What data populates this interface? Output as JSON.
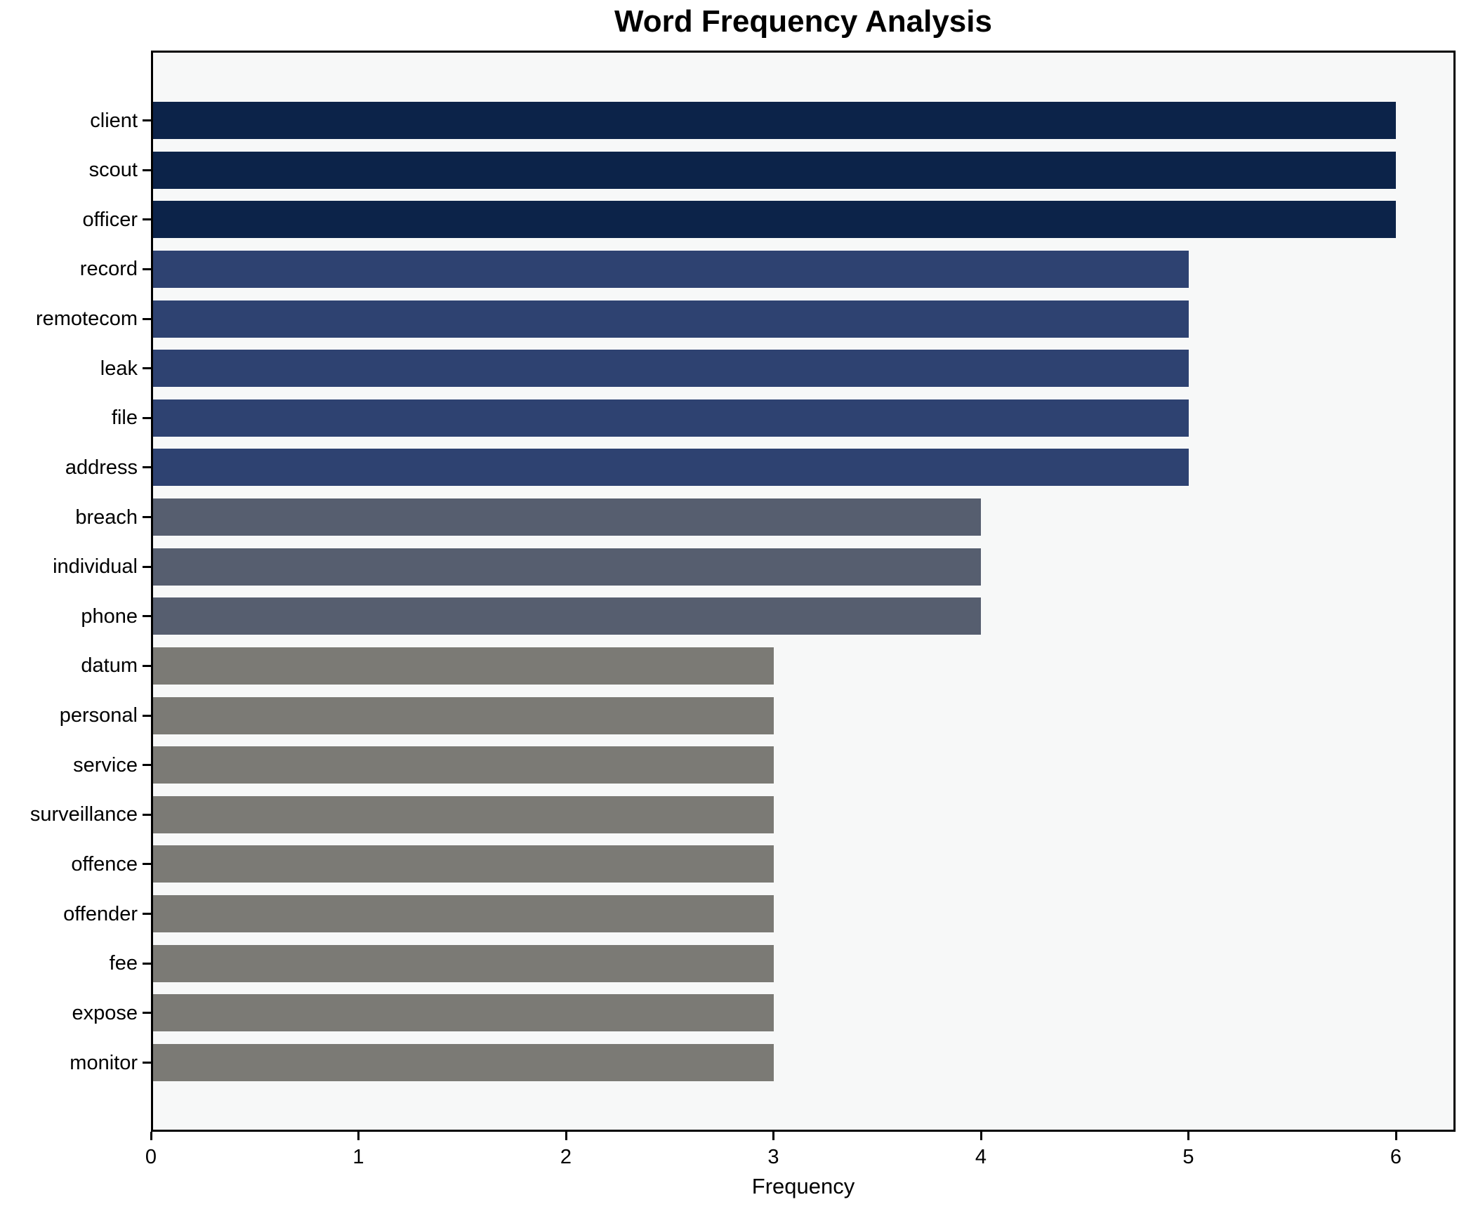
{
  "chart_data": {
    "type": "bar",
    "orientation": "horizontal",
    "title": "Word Frequency Analysis",
    "xlabel": "Frequency",
    "ylabel": "",
    "categories": [
      "client",
      "scout",
      "officer",
      "record",
      "remotecom",
      "leak",
      "file",
      "address",
      "breach",
      "individual",
      "phone",
      "datum",
      "personal",
      "service",
      "surveillance",
      "offence",
      "offender",
      "fee",
      "expose",
      "monitor"
    ],
    "values": [
      6,
      6,
      6,
      5,
      5,
      5,
      5,
      5,
      4,
      4,
      4,
      3,
      3,
      3,
      3,
      3,
      3,
      3,
      3,
      3
    ],
    "x_ticks": [
      0,
      1,
      2,
      3,
      4,
      5,
      6
    ],
    "xlim": [
      0,
      6.29
    ],
    "grid": false,
    "legend": null,
    "value_colors": {
      "6": "#0c2349",
      "5": "#2e4271",
      "4": "#565e6f",
      "3": "#7b7a75"
    },
    "plot_background": "#f7f8f8",
    "figure_background": "#ffffff",
    "axis_color": "#000000",
    "text_color": "#000000"
  }
}
